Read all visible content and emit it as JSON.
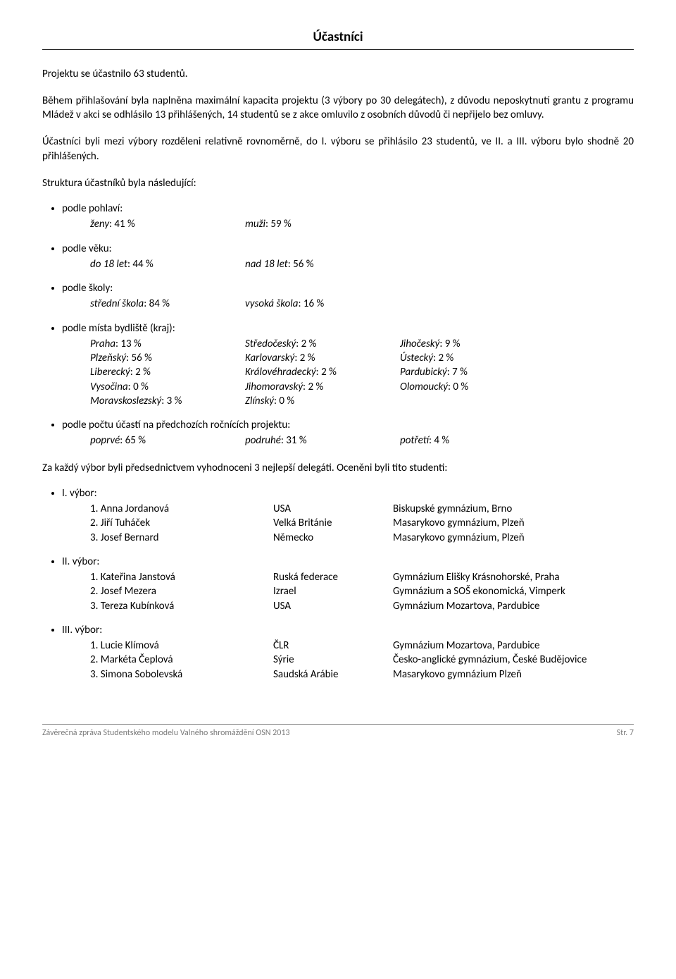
{
  "title": "Účastníci",
  "para1": "Projektu se účastnilo 63 studentů.",
  "para2": "Během přihlašování byla naplněna maximální kapacita projektu (3 výbory po 30 delegátech), z důvodu neposkytnutí grantu z programu Mládež v akci se odhlásilo 13 přihlášených, 14 studentů se z akce omluvilo z osobních důvodů či nepřijelo bez omluvy.",
  "para3": "Účastníci byli mezi výbory rozděleni relativně rovnoměrně, do I. výboru se přihlásilo 23 studentů, ve II. a III. výboru bylo shodně 20 přihlášených.",
  "structure_intro": "Struktura účastníků byla následující:",
  "gender": {
    "label": "podle pohlaví:",
    "a": "ženy",
    "av": ": 41 %",
    "b": "muži",
    "bv": ": 59 %"
  },
  "age": {
    "label": "podle věku:",
    "a": "do 18 let",
    "av": ": 44 %",
    "b": "nad 18 let",
    "bv": ": 56 %"
  },
  "school": {
    "label": "podle školy:",
    "a": "střední škola",
    "av": ": 84 %",
    "b": "vysoká škola",
    "bv": ": 16 %"
  },
  "region": {
    "label": "podle místa bydliště (kraj):",
    "rows": [
      {
        "a": "Praha",
        "av": ": 13 %",
        "b": "Středočeský",
        "bv": ": 2 %",
        "c": "Jihočeský",
        "cv": ": 9 %"
      },
      {
        "a": "Plzeňský",
        "av": ": 56 %",
        "b": "Karlovarský",
        "bv": ": 2 %",
        "c": "Ústecký",
        "cv": ": 2 %"
      },
      {
        "a": "Liberecký",
        "av": ": 2 %",
        "b": "Královéhradecký",
        "bv": ": 2 %",
        "c": "Pardubický",
        "cv": ": 7 %"
      },
      {
        "a": "Vysočina",
        "av": ": 0 %",
        "b": "Jihomoravský",
        "bv": ": 2 %",
        "c": "Olomoucký",
        "cv": ": 0 %"
      },
      {
        "a": "Moravskoslezský",
        "av": ": 3 %",
        "b": "Zlínský",
        "bv": ": 0 %",
        "c": "",
        "cv": ""
      }
    ]
  },
  "participation": {
    "label": "podle počtu účastí na předchozích ročnících projektu:",
    "a": "poprvé",
    "av": ": 65 %",
    "b": "podruhé",
    "bv": ": 31 %",
    "c": "potřetí",
    "cv": ": 4 %"
  },
  "awards_intro": "Za každý výbor byli předsednictvem vyhodnoceni 3 nejlepší delegáti. Oceněni byli tito studenti:",
  "committees": [
    {
      "label": "I. výbor:",
      "rows": [
        {
          "n": "1.",
          "name": "Anna Jordanová",
          "country": "USA",
          "school": "Biskupské gymnázium, Brno"
        },
        {
          "n": "2.",
          "name": "Jiří Tuháček",
          "country": "Velká Británie",
          "school": "Masarykovo gymnázium, Plzeň"
        },
        {
          "n": "3.",
          "name": "Josef Bernard",
          "country": "Německo",
          "school": "Masarykovo gymnázium, Plzeň"
        }
      ]
    },
    {
      "label": "II. výbor:",
      "rows": [
        {
          "n": "1.",
          "name": "Kateřina Janstová",
          "country": "Ruská federace",
          "school": "Gymnázium Elišky Krásnohorské, Praha"
        },
        {
          "n": "2.",
          "name": "Josef Mezera",
          "country": "Izrael",
          "school": "Gymnázium a SOŠ ekonomická, Vimperk"
        },
        {
          "n": "3.",
          "name": "Tereza Kubínková",
          "country": "USA",
          "school": "Gymnázium Mozartova, Pardubice"
        }
      ]
    },
    {
      "label": "III. výbor:",
      "rows": [
        {
          "n": "1.",
          "name": "Lucie Klímová",
          "country": "ČLR",
          "school": "Gymnázium Mozartova, Pardubice"
        },
        {
          "n": "2.",
          "name": "Markéta Čeplová",
          "country": "Sýrie",
          "school": "Česko-anglické gymnázium, České Budějovice"
        },
        {
          "n": "3.",
          "name": "Simona Sobolevská",
          "country": "Saudská Arábie",
          "school": "Masarykovo gymnázium Plzeň"
        }
      ]
    }
  ],
  "footer_left": "Závěrečná zpráva Studentského modelu Valného shromáždění OSN 2013",
  "footer_right": "Str. 7"
}
